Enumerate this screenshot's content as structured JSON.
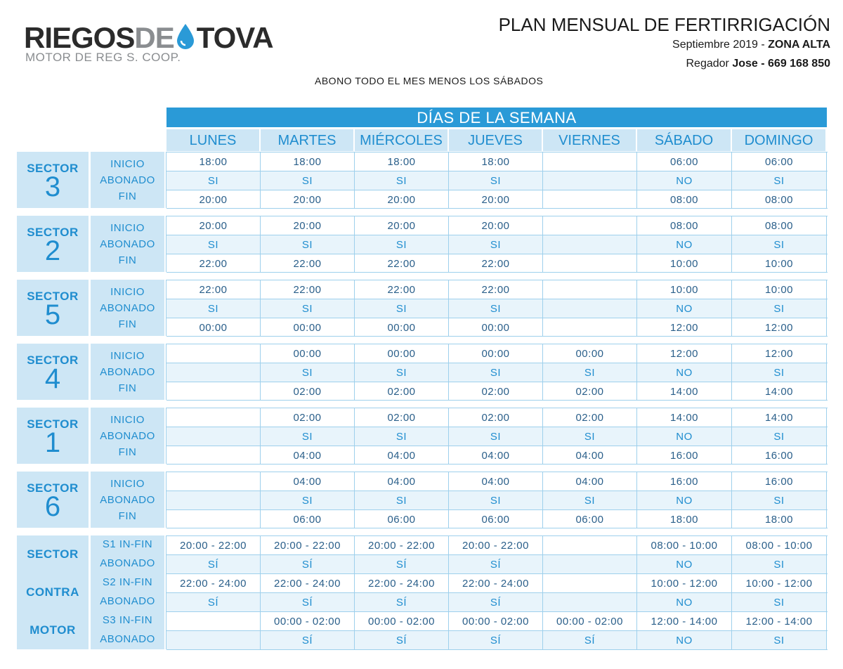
{
  "header": {
    "logo_part1": "RIEGOS",
    "logo_part2": "DE",
    "logo_part3": "TOVA",
    "logo_sub": "MOTOR DE REG S. COOP.",
    "title": "PLAN MENSUAL DE FERTIRRIGACIÓN",
    "month": "Septiembre 2019 - ",
    "zone": "ZONA ALTA",
    "regador_label": "Regador ",
    "regador_value": "Jose - 669 168 850",
    "note": "ABONO TODO EL MES MENOS LOS SÁBADOS"
  },
  "days_title": "DÍAS DE LA SEMANA",
  "days": [
    "LUNES",
    "MARTES",
    "MIÉRCOLES",
    "JUEVES",
    "VIERNES",
    "SÁBADO",
    "DOMINGO"
  ],
  "row_labels": {
    "start": "INICIO",
    "fert": "ABONADO",
    "end": "FIN"
  },
  "sector_label": "SECTOR",
  "sectors": [
    {
      "number": "3",
      "start": [
        "18:00",
        "18:00",
        "18:00",
        "18:00",
        "",
        "06:00",
        "06:00"
      ],
      "fert": [
        "SI",
        "SI",
        "SI",
        "SI",
        "",
        "NO",
        "SI"
      ],
      "end": [
        "20:00",
        "20:00",
        "20:00",
        "20:00",
        "",
        "08:00",
        "08:00"
      ]
    },
    {
      "number": "2",
      "start": [
        "20:00",
        "20:00",
        "20:00",
        "20:00",
        "",
        "08:00",
        "08:00"
      ],
      "fert": [
        "SI",
        "SI",
        "SI",
        "SI",
        "",
        "NO",
        "SI"
      ],
      "end": [
        "22:00",
        "22:00",
        "22:00",
        "22:00",
        "",
        "10:00",
        "10:00"
      ]
    },
    {
      "number": "5",
      "start": [
        "22:00",
        "22:00",
        "22:00",
        "22:00",
        "",
        "10:00",
        "10:00"
      ],
      "fert": [
        "SI",
        "SI",
        "SI",
        "SI",
        "",
        "NO",
        "SI"
      ],
      "end": [
        "00:00",
        "00:00",
        "00:00",
        "00:00",
        "",
        "12:00",
        "12:00"
      ]
    },
    {
      "number": "4",
      "start": [
        "",
        "00:00",
        "00:00",
        "00:00",
        "00:00",
        "12:00",
        "12:00"
      ],
      "fert": [
        "",
        "SI",
        "SI",
        "SI",
        "SI",
        "NO",
        "SI"
      ],
      "end": [
        "",
        "02:00",
        "02:00",
        "02:00",
        "02:00",
        "14:00",
        "14:00"
      ]
    },
    {
      "number": "1",
      "start": [
        "",
        "02:00",
        "02:00",
        "02:00",
        "02:00",
        "14:00",
        "14:00"
      ],
      "fert": [
        "",
        "SI",
        "SI",
        "SI",
        "SI",
        "NO",
        "SI"
      ],
      "end": [
        "",
        "04:00",
        "04:00",
        "04:00",
        "04:00",
        "16:00",
        "16:00"
      ]
    },
    {
      "number": "6",
      "start": [
        "",
        "04:00",
        "04:00",
        "04:00",
        "04:00",
        "16:00",
        "16:00"
      ],
      "fert": [
        "",
        "SI",
        "SI",
        "SI",
        "SI",
        "NO",
        "SI"
      ],
      "end": [
        "",
        "06:00",
        "06:00",
        "06:00",
        "06:00",
        "18:00",
        "18:00"
      ]
    }
  ],
  "contra_motor": {
    "labels": [
      "SECTOR",
      "CONTRA",
      "MOTOR"
    ],
    "rows": [
      {
        "label": "S1 IN-FIN",
        "cells": [
          "20:00 - 22:00",
          "20:00 - 22:00",
          "20:00 - 22:00",
          "20:00 - 22:00",
          "",
          "08:00 - 10:00",
          "08:00 - 10:00"
        ]
      },
      {
        "label": "ABONADO",
        "cells": [
          "SÍ",
          "SÍ",
          "SÍ",
          "SÍ",
          "",
          "NO",
          "SI"
        ]
      },
      {
        "label": "S2 IN-FIN",
        "cells": [
          "22:00 - 24:00",
          "22:00 - 24:00",
          "22:00 - 24:00",
          "22:00 - 24:00",
          "",
          "10:00 - 12:00",
          "10:00 - 12:00"
        ]
      },
      {
        "label": "ABONADO",
        "cells": [
          "SÍ",
          "SÍ",
          "SÍ",
          "SÍ",
          "",
          "NO",
          "SI"
        ]
      },
      {
        "label": "S3 IN-FIN",
        "cells": [
          "",
          "00:00 - 02:00",
          "00:00 - 02:00",
          "00:00 - 02:00",
          "00:00 - 02:00",
          "12:00 - 14:00",
          "12:00 - 14:00"
        ]
      },
      {
        "label": "ABONADO",
        "cells": [
          "",
          "SÍ",
          "SÍ",
          "SÍ",
          "SÍ",
          "NO",
          "SI"
        ]
      }
    ]
  },
  "colors": {
    "accent": "#2a9ad7",
    "light": "#cde6f5",
    "text_blue": "#1f8dcf"
  }
}
